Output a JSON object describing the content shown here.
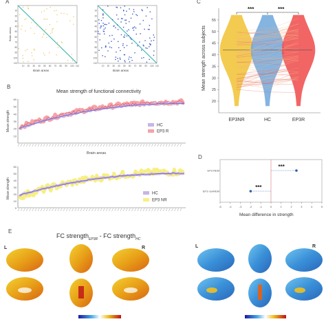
{
  "panel_a": {
    "letter": "A",
    "xlabel": "Brain areas",
    "ylabel": "Brain areas",
    "ticks": [
      "10",
      "20",
      "30",
      "40",
      "50",
      "60",
      "70",
      "80",
      "90",
      "100",
      "110"
    ],
    "colors": {
      "diag": "#3cb6b0",
      "left_dots": "#e8c24a",
      "right_dots": "#3a56c8"
    }
  },
  "panel_b": {
    "letter": "B",
    "title": "Mean strength of functional connectivity",
    "ylabel": "Mean strength",
    "xlabel": "Brain areas",
    "top_legend": [
      {
        "name": "HC",
        "color": "#c8b4e4"
      },
      {
        "name": "EP3 R",
        "color": "#f5a3a6"
      }
    ],
    "bottom_legend": [
      {
        "name": "HC",
        "color": "#c8b4e4"
      },
      {
        "name": "EP3 NR",
        "color": "#f7ef82"
      }
    ],
    "top_yticks": [
      "60",
      "50",
      "40",
      "30",
      "20",
      "10"
    ],
    "bottom_yticks": [
      "60",
      "50",
      "40",
      "30",
      "20",
      "10",
      "0"
    ]
  },
  "chart_data": [
    {
      "type": "violin",
      "panel": "C",
      "letter": "C",
      "ylabel": "Mean strength across subjects",
      "categories": [
        "EP3NR",
        "HC",
        "EP3R"
      ],
      "ylim": [
        15,
        60
      ],
      "yticks": [
        20,
        25,
        30,
        35,
        40,
        45,
        50,
        55
      ],
      "significance": [
        "***",
        "***"
      ],
      "colors": {
        "EP3NR": "#f2c232",
        "HC": "#6fa8dc",
        "EP3R": "#f04b4b"
      }
    },
    {
      "type": "dot",
      "panel": "D",
      "letter": "D",
      "xlabel": "Mean difference in strength",
      "categories": [
        "EP3 REM",
        "EP3 nonREM"
      ],
      "values": [
        2.5,
        -2.0
      ],
      "xlim": [
        -5,
        5
      ],
      "xticks": [
        -5,
        -4,
        -3,
        -2,
        -1,
        0,
        1,
        2,
        3,
        4,
        5
      ],
      "significance": [
        "***",
        "***"
      ]
    }
  ],
  "panel_e": {
    "letter": "E",
    "title_left": "FC strength",
    "title_sub1": "EP3R",
    "title_mid": " - FC strength",
    "title_sub2": "HC",
    "label_L": "L",
    "label_R": "R"
  }
}
